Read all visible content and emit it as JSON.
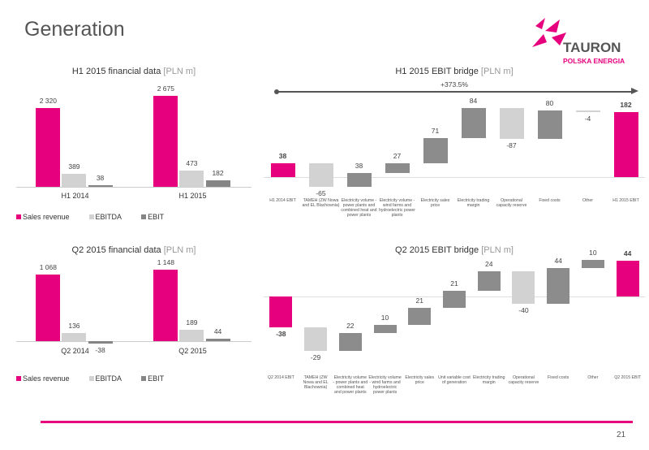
{
  "page": {
    "title": "Generation",
    "logo": {
      "name": "TAURON",
      "tagline": "POLSKA ENERGIA"
    },
    "page_number": 21
  },
  "chart_data": [
    {
      "type": "bar",
      "title": "H1 2015 financial data",
      "unit": "[PLN m]",
      "categories": [
        "H1 2014",
        "H1 2015"
      ],
      "series": [
        {
          "name": "Sales revenue",
          "color": "#e6007e",
          "values": [
            2320,
            2675
          ],
          "value_labels": [
            "2 320",
            "2 675"
          ]
        },
        {
          "name": "EBITDA",
          "color": "#d2d2d2",
          "values": [
            389,
            473
          ]
        },
        {
          "name": "EBIT",
          "color": "#858585",
          "values": [
            38,
            182
          ]
        }
      ]
    },
    {
      "type": "bar",
      "title": "Q2 2015 financial data",
      "unit": "[PLN m]",
      "categories": [
        "Q2 2014",
        "Q2 2015"
      ],
      "series": [
        {
          "name": "Sales revenue",
          "color": "#e6007e",
          "values": [
            1068,
            1148
          ],
          "value_labels": [
            "1 068",
            "1 148"
          ]
        },
        {
          "name": "EBITDA",
          "color": "#d2d2d2",
          "values": [
            136,
            189
          ]
        },
        {
          "name": "EBIT",
          "color": "#858585",
          "values": [
            -38,
            44
          ]
        }
      ]
    },
    {
      "type": "waterfall",
      "title": "H1 2015 EBIT bridge",
      "unit": "[PLN m]",
      "annotation": "+373.5%",
      "categories": [
        "H1 2014 EBIT",
        "TAMEH (ZW Nowa and EL Blachownia)",
        "Electricity volume - power plants and combined heat and power plants",
        "Electricity volume - wind farms and hydroelectric power plants",
        "Electricity sales price",
        "Electricity trading margin",
        "Operational capacity reserve",
        "Fixed costs",
        "Other",
        "H1 2015 EBIT"
      ],
      "values": [
        38,
        -65,
        38,
        27,
        71,
        84,
        -87,
        80,
        -4,
        182
      ],
      "measures": [
        "absolute",
        "relative",
        "relative",
        "relative",
        "relative",
        "relative",
        "relative",
        "relative",
        "relative",
        "absolute"
      ],
      "total_color": "#e6007e",
      "increase_color": "#8c8c8c",
      "decrease_color": "#d2d2d2"
    },
    {
      "type": "waterfall",
      "title": "Q2 2015 EBIT bridge",
      "unit": "[PLN m]",
      "categories": [
        "Q2 2014 EBIT",
        "TAMEH (ZW Nowa and EL Blachownia)",
        "Electricity volume - power plants and combined heat and power plants",
        "Electricity volume - wind farms and hydroelectric power plants",
        "Electricity sales price",
        "Unit variable cost of generation",
        "Electricity trading margin",
        "Operational capacity reserve",
        "Fixed costs",
        "Other",
        "Q2 2015 EBIT"
      ],
      "values": [
        -38,
        -29,
        22,
        10,
        21,
        21,
        24,
        -40,
        44,
        10,
        44
      ],
      "measures": [
        "absolute",
        "relative",
        "relative",
        "relative",
        "relative",
        "relative",
        "relative",
        "relative",
        "relative",
        "relative",
        "absolute"
      ],
      "total_color": "#e6007e",
      "increase_color": "#8c8c8c",
      "decrease_color": "#d2d2d2"
    }
  ]
}
